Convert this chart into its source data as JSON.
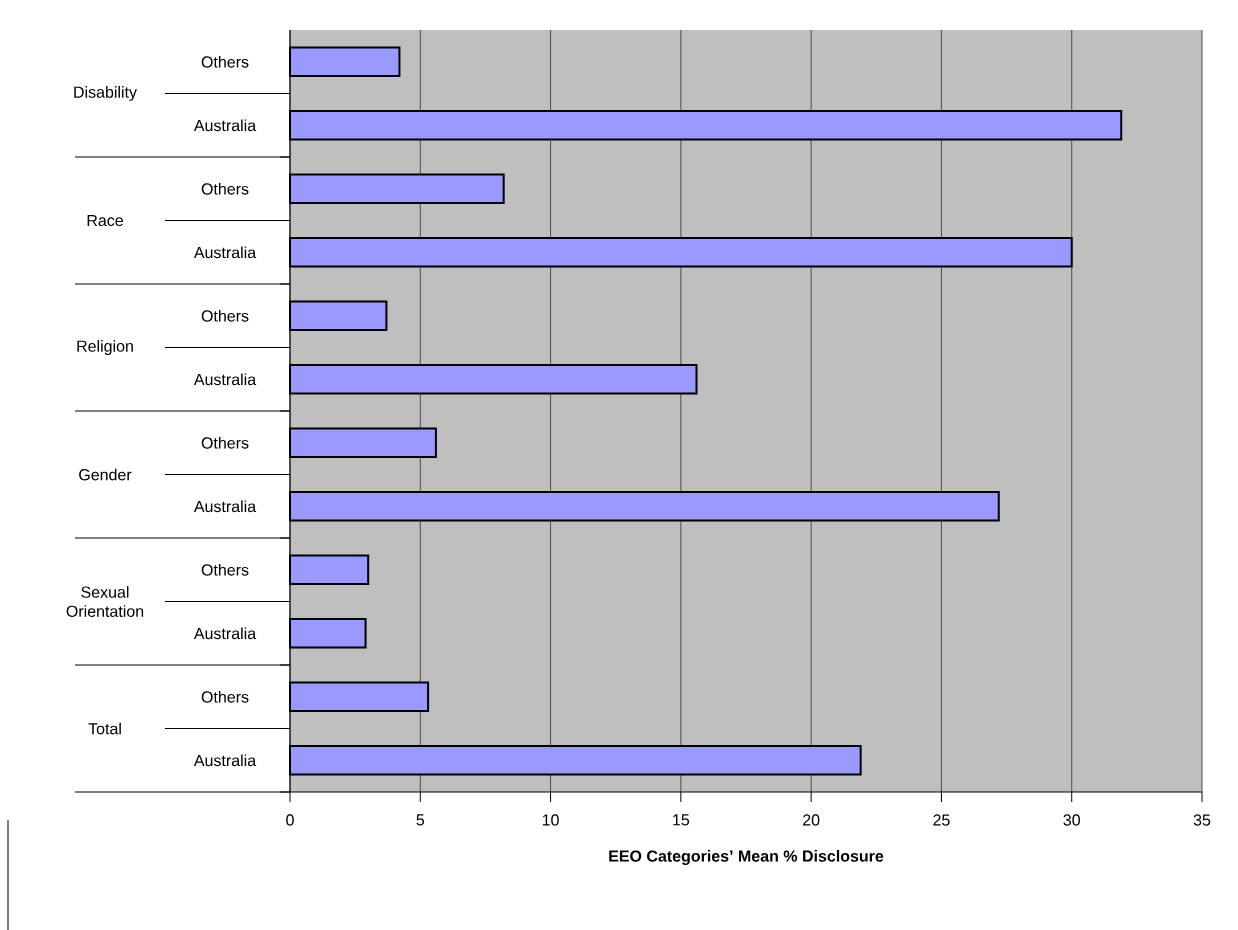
{
  "chart_data": {
    "type": "bar",
    "orientation": "horizontal",
    "xlabel": "EEO Categories’ Mean % Disclosure",
    "categories": [
      "Others",
      "Australia",
      "Others",
      "Australia",
      "Others",
      "Australia",
      "Others",
      "Australia",
      "Others",
      "Australia",
      "Others",
      "Australia"
    ],
    "annotations": [
      "Disability",
      "Race",
      "Religion",
      "Gender",
      "Sexual Orientation",
      "Total"
    ],
    "values": [
      4.2,
      31.9,
      8.2,
      30.0,
      3.7,
      15.6,
      5.6,
      27.2,
      3.0,
      2.9,
      5.3,
      21.9
    ],
    "color": "#9999ff",
    "xlim": [
      0,
      35
    ],
    "xticks": [
      0,
      5,
      10,
      15,
      20,
      25,
      30,
      35
    ],
    "grid": "x"
  }
}
